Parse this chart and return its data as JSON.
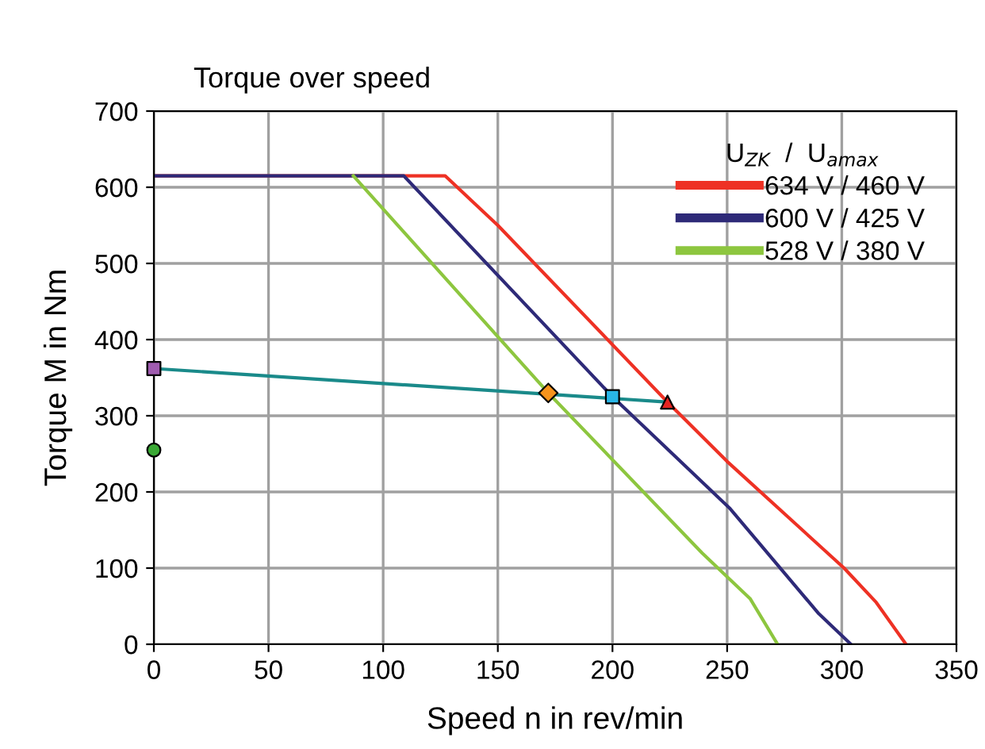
{
  "chart_data": {
    "type": "line",
    "title": "Torque over speed",
    "xlabel": "Speed n in rev/min",
    "ylabel": "Torque M in Nm",
    "legend_title": "U$_{ZK}$  /  U$_{amax}$",
    "legend": "top right",
    "grid": true,
    "xlim": [
      0,
      350
    ],
    "xticks": [
      0,
      50,
      100,
      150,
      200,
      250,
      300,
      350
    ],
    "ylim": [
      0,
      700
    ],
    "yticks": [
      0,
      100,
      200,
      300,
      400,
      500,
      600,
      700
    ],
    "series": [
      {
        "name": "634 V / 460 V",
        "color": "#ee3124",
        "x": [
          0,
          127,
          150,
          224,
          250,
          301,
          315,
          328
        ],
        "values": [
          615,
          615,
          550,
          318,
          240,
          100,
          55,
          0
        ]
      },
      {
        "name": "600 V / 425 V",
        "color": "#2e2a78",
        "x": [
          0,
          109,
          200,
          251,
          290,
          304
        ],
        "values": [
          615,
          615,
          325,
          179,
          40,
          0
        ]
      },
      {
        "name": "528 V / 380 V",
        "color": "#8dc63f",
        "x": [
          87,
          172,
          239,
          260,
          272
        ],
        "values": [
          615,
          330,
          120,
          60,
          0
        ]
      },
      {
        "color": "#1a8a8a",
        "x": [
          0,
          224
        ],
        "values": [
          362,
          318
        ]
      },
      {
        "type": "scatter",
        "marker": "square",
        "color": "#a05cb0",
        "x": [
          0
        ],
        "values": [
          362
        ]
      },
      {
        "type": "scatter",
        "marker": "circle",
        "color": "#3aa935",
        "x": [
          0
        ],
        "values": [
          255
        ]
      },
      {
        "type": "scatter",
        "marker": "diamond",
        "color": "#f7941d",
        "x": [
          172
        ],
        "values": [
          330
        ]
      },
      {
        "type": "scatter",
        "marker": "square",
        "color": "#29b6e6",
        "x": [
          200
        ],
        "values": [
          325
        ]
      },
      {
        "type": "scatter",
        "marker": "triangle",
        "color": "#e52421",
        "x": [
          224
        ],
        "values": [
          318
        ]
      }
    ]
  }
}
